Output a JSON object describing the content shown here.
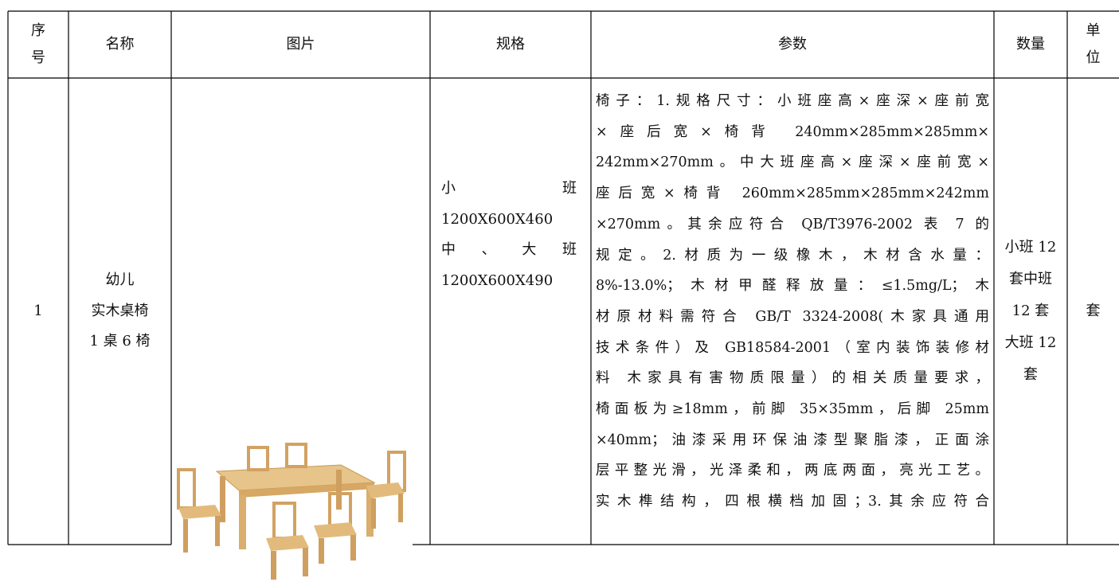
{
  "table": {
    "headers": [
      [
        "序",
        "号"
      ],
      "名称",
      "图片",
      "规格",
      "参数",
      "数量",
      [
        "单",
        "位"
      ]
    ],
    "rows": [
      [
        "1",
        [
          "幼儿",
          "实木桌椅",
          "1 桌 6 椅"
        ],
        [
          "小 班",
          "1200X600X460",
          "中 、 大 班",
          "1200X600X490"
        ],
        [
          "椅子：1.规格尺寸：小班座高×座深×座前宽",
          "×座后宽×椅背 240mm×285mm×285mm×",
          "242mm×270mm。中大班座高×座深×座前宽×",
          "座后宽×椅背 260mm×285mm×285mm×242mm",
          "×270mm。其余应符合 QB/T3976-2002 表 7 的",
          "规定。2.材质为一级橡木，木材含水量：",
          "8%-13.0%；木材甲醛释放量：≤1.5mg/L；木",
          "材原材料需符合 GB/T 3324-2008(木家具通用",
          "技术条件）及 GB18584-2001（室内装饰装修材",
          "料 木家具有害物质限量）的相关质量要求，",
          "椅面板为≥18mm，前脚 35×35mm，后脚 25mm",
          "×40mm；油漆采用环保油漆型聚脂漆，正面涂",
          "层平整光滑，光泽柔和，两底两面，亮光工艺。",
          "实木榫结构，四根横档加固；3.其余应符合"
        ],
        [
          "小班 12",
          "套中班",
          "12 套",
          "大班 12",
          "套"
        ],
        "套"
      ]
    ]
  }
}
